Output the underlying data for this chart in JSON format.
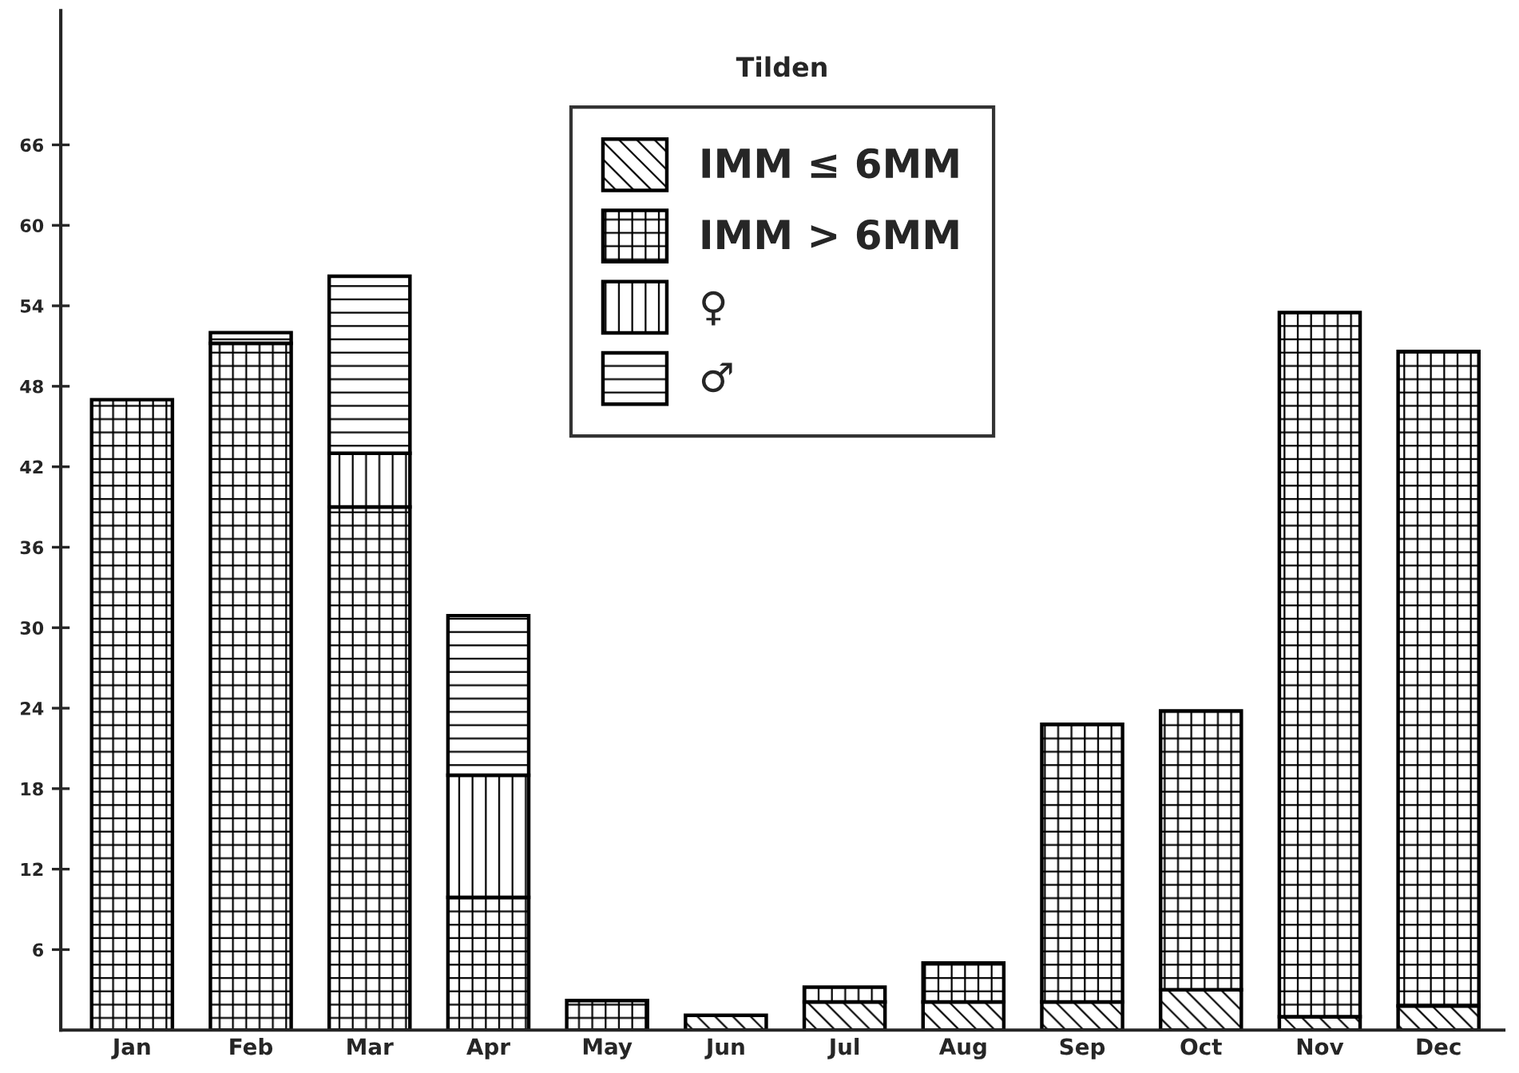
{
  "chart_data": {
    "type": "bar",
    "title": "Tilden",
    "stacked": true,
    "categories": [
      "Jan",
      "Feb",
      "Mar",
      "Apr",
      "May",
      "Jun",
      "Jul",
      "Aug",
      "Sep",
      "Oct",
      "Nov",
      "Dec"
    ],
    "series": [
      {
        "name": "IMM ≤ 6MM",
        "color": "#000000",
        "values": [
          null,
          null,
          null,
          null,
          null,
          1.1,
          2.1,
          2.1,
          2.1,
          3.0,
          1.0,
          1.8
        ]
      },
      {
        "name": "IMM > 6MM",
        "color": "#000000",
        "values": [
          47.0,
          51.2,
          39.0,
          9.9,
          2.2,
          null,
          null,
          2.9,
          20.7,
          20.8,
          52.5,
          48.8
        ]
      },
      {
        "name": "♀",
        "color": "#000000",
        "values": [
          null,
          null,
          4.0,
          9.1,
          null,
          null,
          1.1,
          null,
          null,
          null,
          null,
          null
        ]
      },
      {
        "name": "♂",
        "color": "#000000",
        "values": [
          null,
          0.8,
          13.2,
          11.9,
          null,
          null,
          null,
          null,
          null,
          null,
          null,
          null
        ]
      }
    ],
    "ylim": [
      0,
      76
    ],
    "yticks": [
      6,
      12,
      18,
      24,
      30,
      36,
      42,
      48,
      54,
      60,
      66
    ],
    "grid": false,
    "legend": "top"
  }
}
